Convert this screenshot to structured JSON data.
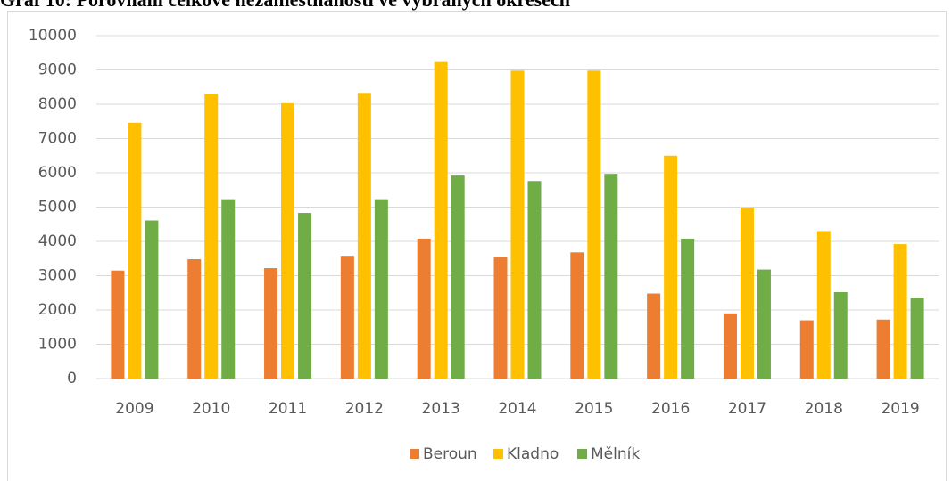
{
  "chart_data": {
    "type": "bar",
    "title": "Graf 10: Porovnání celkové nezaměstnanosti ve vybraných okresech",
    "categories": [
      "2009",
      "2010",
      "2011",
      "2012",
      "2013",
      "2014",
      "2015",
      "2016",
      "2017",
      "2018",
      "2019"
    ],
    "series": [
      {
        "name": "Beroun",
        "color": "#ed7d31",
        "values": [
          3150,
          3480,
          3220,
          3580,
          4080,
          3550,
          3680,
          2480,
          1900,
          1700,
          1720
        ]
      },
      {
        "name": "Kladno",
        "color": "#ffc000",
        "values": [
          7460,
          8300,
          8030,
          8330,
          9230,
          8980,
          8980,
          6500,
          4980,
          4300,
          3920
        ]
      },
      {
        "name": "Mělník",
        "color": "#70ad47",
        "values": [
          4610,
          5230,
          4830,
          5230,
          5920,
          5760,
          5970,
          4080,
          3180,
          2520,
          2360
        ]
      }
    ],
    "ylim": [
      0,
      10000
    ],
    "yticks": [
      0,
      1000,
      2000,
      3000,
      4000,
      5000,
      6000,
      7000,
      8000,
      9000,
      10000
    ],
    "grid": true,
    "legend": "bottom"
  }
}
